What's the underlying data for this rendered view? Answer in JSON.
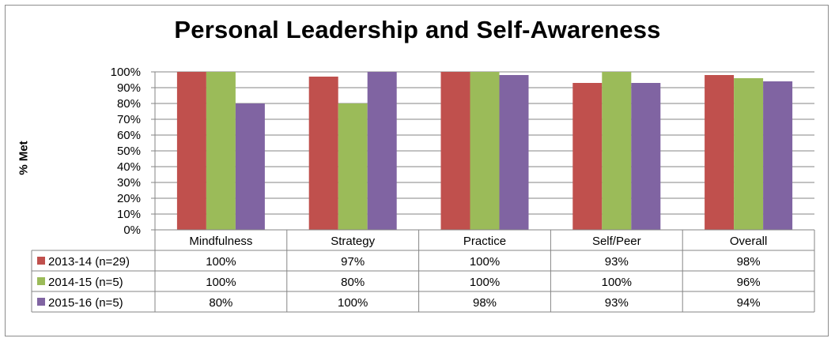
{
  "chart_data": {
    "type": "bar",
    "title": "Personal Leadership and Self-Awareness",
    "xlabel": "",
    "ylabel": "% Met",
    "ylim": [
      0,
      100
    ],
    "y_ticks": [
      "0%",
      "10%",
      "20%",
      "30%",
      "40%",
      "50%",
      "60%",
      "70%",
      "80%",
      "90%",
      "100%"
    ],
    "categories": [
      "Mindfulness",
      "Strategy",
      "Practice",
      "Self/Peer",
      "Overall"
    ],
    "series": [
      {
        "name": "2013-14 (n=29)",
        "color": "#c0504d",
        "values": [
          100,
          97,
          100,
          93,
          98
        ],
        "labels": [
          "100%",
          "97%",
          "100%",
          "93%",
          "98%"
        ]
      },
      {
        "name": "2014-15 (n=5)",
        "color": "#9bbb59",
        "values": [
          100,
          80,
          100,
          100,
          96
        ],
        "labels": [
          "100%",
          "80%",
          "100%",
          "100%",
          "96%"
        ]
      },
      {
        "name": "2015-16 (n=5)",
        "color": "#8064a2",
        "values": [
          80,
          100,
          98,
          93,
          94
        ],
        "labels": [
          "80%",
          "100%",
          "98%",
          "93%",
          "94%"
        ]
      }
    ],
    "grid": true,
    "legend": "data-table"
  }
}
